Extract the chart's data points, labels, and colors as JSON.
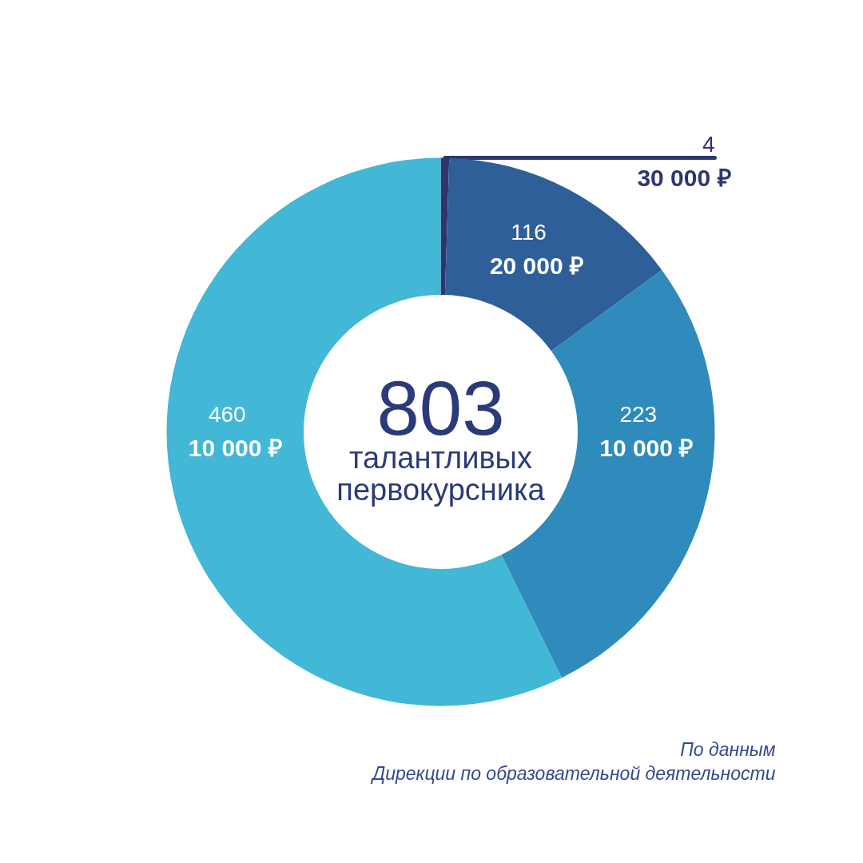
{
  "chart_data": {
    "type": "donut",
    "title": "803",
    "subtitle": "талантливых\nпервокурсника",
    "categories": [
      "30 000 ₽",
      "20 000 ₽",
      "10 000 ₽",
      "10 000 ₽"
    ],
    "values": [
      4,
      116,
      223,
      460
    ],
    "colors": [
      "#2e3570",
      "#2f5f98",
      "#2e8bbb",
      "#42b7d6"
    ],
    "data_labels": true,
    "annotations": [
      "По данным\nДирекции по образовательной деятельности"
    ]
  }
}
